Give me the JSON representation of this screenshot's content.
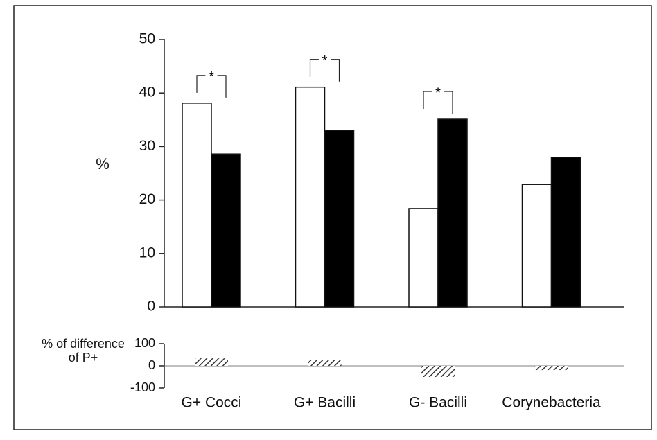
{
  "chart_data": [
    {
      "type": "bar",
      "ylabel": "%",
      "ylim": [
        0,
        50
      ],
      "yticks": [
        0,
        10,
        20,
        30,
        40,
        50
      ],
      "series": [
        {
          "color": "#ffffff",
          "values": [
            38.1,
            41.1,
            18.4,
            22.9
          ]
        },
        {
          "color": "#000000",
          "values": [
            28.6,
            33.0,
            35.1,
            28.0
          ]
        }
      ],
      "significance_labels": [
        "*",
        "*",
        "*",
        null
      ]
    },
    {
      "type": "bar",
      "ylabel": "% of difference of P+",
      "categories": [
        "G+ Cocci",
        "G+ Bacilli",
        "G- Bacilli",
        "Corynebacteria"
      ],
      "values": [
        34,
        25,
        -50,
        -19
      ],
      "color": "#333333",
      "pattern": "hatch",
      "ylim": [
        -100,
        100
      ],
      "yticks": [
        -100,
        0,
        100
      ],
      "zero_line": true
    }
  ]
}
